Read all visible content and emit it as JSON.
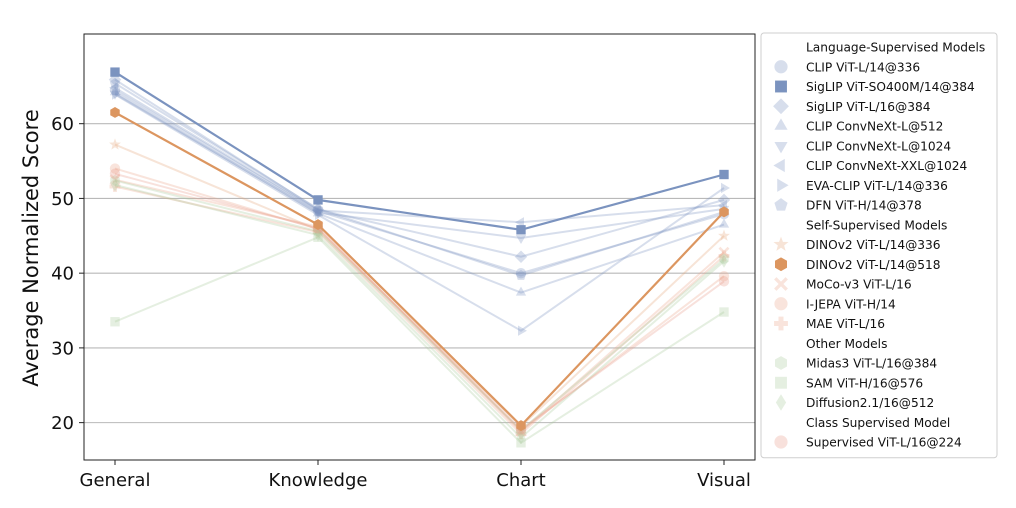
{
  "chart_data": {
    "type": "line",
    "title": "",
    "xlabel": "",
    "ylabel": "Average Normalized Score",
    "categories": [
      "General",
      "Knowledge",
      "Chart",
      "Visual"
    ],
    "ylim": [
      15,
      72
    ],
    "yticks": [
      20,
      30,
      40,
      50,
      60
    ],
    "grid": "horizontal",
    "legend_position": "right-outside",
    "groups": [
      {
        "heading": "Language-Supervised Models",
        "series": [
          {
            "name": "CLIP ViT-L/14@336",
            "marker": "circle",
            "color": "#7b93bf",
            "highlight": false,
            "values": [
              64.5,
              48.3,
              40.0,
              47.9
            ]
          },
          {
            "name": "SigLIP ViT-SO400M/14@384",
            "marker": "square",
            "color": "#7b93bf",
            "highlight": true,
            "values": [
              66.9,
              49.8,
              45.8,
              53.2
            ]
          },
          {
            "name": "SigLIP ViT-L/16@384",
            "marker": "diamond",
            "color": "#7b93bf",
            "highlight": false,
            "values": [
              65.9,
              48.5,
              42.2,
              49.8
            ]
          },
          {
            "name": "CLIP ConvNeXt-L@512",
            "marker": "triangle-up",
            "color": "#7b93bf",
            "highlight": false,
            "values": [
              64.2,
              48.0,
              37.4,
              46.5
            ]
          },
          {
            "name": "CLIP ConvNeXt-L@1024",
            "marker": "triangle-down",
            "color": "#7b93bf",
            "highlight": false,
            "values": [
              64.0,
              48.1,
              44.7,
              48.6
            ]
          },
          {
            "name": "CLIP ConvNeXt-XXL@1024",
            "marker": "triangle-left",
            "color": "#7b93bf",
            "highlight": false,
            "values": [
              64.8,
              48.4,
              46.8,
              49.1
            ]
          },
          {
            "name": "EVA-CLIP ViT-L/14@336",
            "marker": "triangle-right",
            "color": "#7b93bf",
            "highlight": false,
            "values": [
              63.9,
              47.8,
              32.3,
              51.4
            ]
          },
          {
            "name": "DFN ViT-H/14@378",
            "marker": "pentagon",
            "color": "#7b93bf",
            "highlight": false,
            "values": [
              65.4,
              48.6,
              39.7,
              48.2
            ]
          }
        ]
      },
      {
        "heading": "Self-Supervised Models",
        "series": [
          {
            "name": "DINOv2 ViT-L/14@336",
            "marker": "star",
            "color": "#e3a77a",
            "highlight": false,
            "values": [
              57.2,
              45.8,
              19.5,
              45.0
            ]
          },
          {
            "name": "DINOv2 ViT-L/14@518",
            "marker": "hexagon",
            "color": "#dc9660",
            "highlight": true,
            "values": [
              61.5,
              46.5,
              19.6,
              48.2
            ]
          },
          {
            "name": "MoCo-v3 ViT-L/16",
            "marker": "x",
            "color": "#eca58a",
            "highlight": false,
            "values": [
              52.5,
              46.2,
              18.8,
              42.8
            ]
          },
          {
            "name": "I-JEPA ViT-H/14",
            "marker": "circle",
            "color": "#eca58a",
            "highlight": false,
            "values": [
              54.0,
              45.9,
              18.9,
              39.6
            ]
          },
          {
            "name": "MAE ViT-L/16",
            "marker": "plus",
            "color": "#eca58a",
            "highlight": false,
            "values": [
              51.6,
              45.5,
              18.5,
              42.3
            ]
          }
        ]
      },
      {
        "heading": "Other Models",
        "series": [
          {
            "name": "Midas3 ViT-L/16@384",
            "marker": "hexagon",
            "color": "#a9c99c",
            "highlight": false,
            "values": [
              52.4,
              45.6,
              19.0,
              41.9
            ]
          },
          {
            "name": "SAM ViT-H/16@576",
            "marker": "square",
            "color": "#a9c99c",
            "highlight": false,
            "values": [
              33.5,
              44.8,
              17.3,
              34.8
            ]
          },
          {
            "name": "Diffusion2.1/16@512",
            "marker": "thin-diamond",
            "color": "#a9c99c",
            "highlight": false,
            "values": [
              51.8,
              45.1,
              18.0,
              41.6
            ]
          }
        ]
      },
      {
        "heading": "Class Supervised Model",
        "series": [
          {
            "name": "Supervised ViT-L/16@224",
            "marker": "circle",
            "color": "#e99a8c",
            "highlight": false,
            "values": [
              53.3,
              46.0,
              19.1,
              38.9
            ]
          }
        ]
      }
    ]
  }
}
